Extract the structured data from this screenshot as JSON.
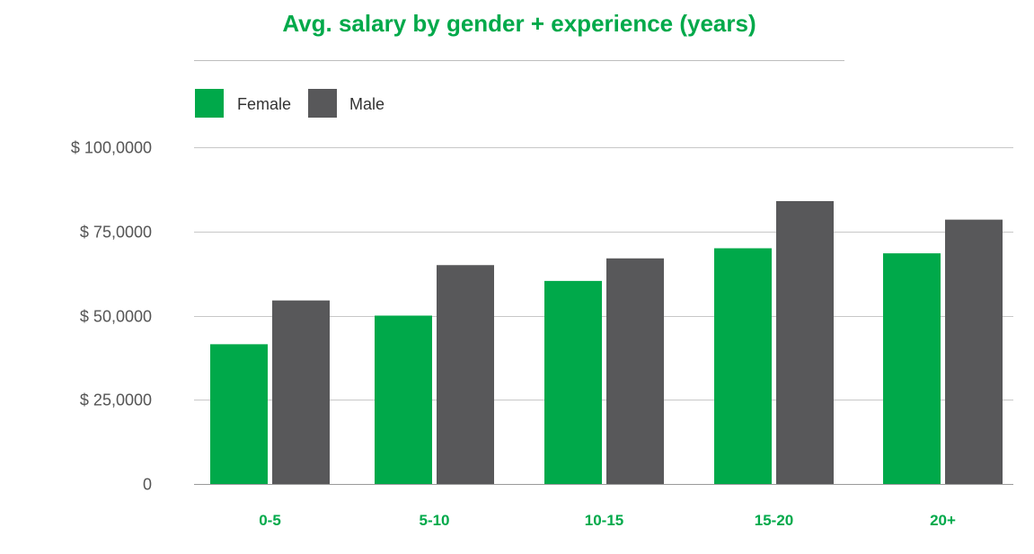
{
  "colors": {
    "accent": "#00a94a",
    "female": "#00a94a",
    "male": "#58585a",
    "grid": "#c8c8c8",
    "title_rule": "#bdbdbd"
  },
  "chart_data": {
    "type": "bar",
    "title": "Avg. salary by gender + experience (years)",
    "xlabel": "",
    "ylabel": "",
    "categories": [
      "0-5",
      "5-10",
      "10-15",
      "15-20",
      "20+"
    ],
    "series": [
      {
        "name": "Female",
        "values": [
          41500,
          50000,
          60300,
          70000,
          68500
        ]
      },
      {
        "name": "Male",
        "values": [
          54500,
          65000,
          67000,
          84000,
          78500
        ]
      }
    ],
    "ylim": [
      0,
      100000
    ],
    "yticks": [
      0,
      25000,
      50000,
      75000,
      100000
    ],
    "ytick_labels": [
      "0",
      "$ 25,0000",
      "$ 50,0000",
      "$ 75,0000",
      "$ 100,0000"
    ],
    "grid": true,
    "legend_position": "top-left"
  }
}
